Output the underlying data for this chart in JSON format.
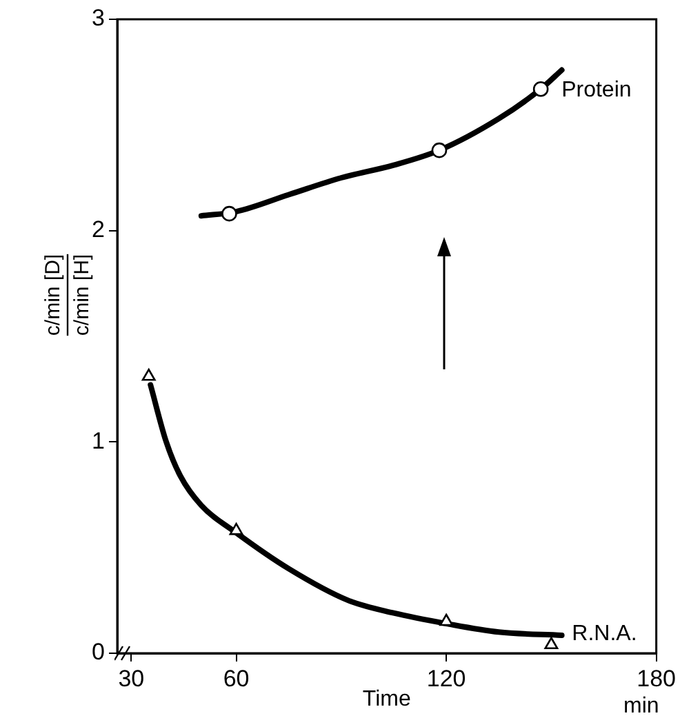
{
  "chart_data": {
    "type": "line",
    "xlabel": "Time",
    "ylabel": "c/min [D]\nc/min [H]",
    "annotations": [
      "min"
    ],
    "xlim": [
      26,
      180
    ],
    "xticks": [
      30,
      60,
      120,
      180
    ],
    "ylim": [
      0,
      3
    ],
    "yticks": [
      0,
      1,
      2,
      3
    ],
    "grid": false,
    "legend": false,
    "series": [
      {
        "name": "Protein",
        "type": "scatter",
        "marker": "circle",
        "color": "#000000",
        "x": [
          58,
          118,
          147
        ],
        "values": [
          2.08,
          2.38,
          2.67
        ]
      },
      {
        "marker": "none",
        "color": "#000000",
        "x": [
          50,
          60,
          75,
          90,
          105,
          118,
          135,
          147,
          153
        ],
        "values": [
          2.07,
          2.09,
          2.17,
          2.25,
          2.31,
          2.38,
          2.53,
          2.67,
          2.76
        ]
      },
      {
        "name": "R.N.A.",
        "type": "scatter",
        "marker": "triangle",
        "color": "#000000",
        "x": [
          35,
          60,
          120,
          150
        ],
        "values": [
          1.31,
          0.58,
          0.15,
          0.04
        ]
      },
      {
        "marker": "none",
        "color": "#000000",
        "x": [
          35.5,
          40,
          44,
          50,
          60,
          75,
          92,
          105,
          120,
          135,
          153
        ],
        "values": [
          1.27,
          1.0,
          0.84,
          0.7,
          0.57,
          0.4,
          0.25,
          0.19,
          0.14,
          0.1,
          0.085
        ]
      }
    ]
  }
}
